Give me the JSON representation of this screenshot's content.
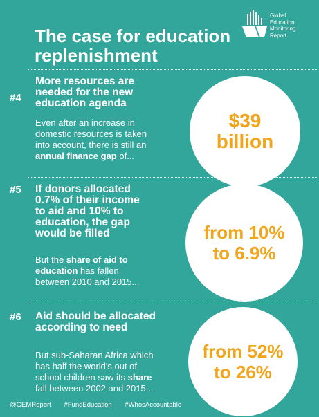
{
  "brand": {
    "logo_lines": [
      "Global",
      "Education",
      "Monitoring",
      "Report"
    ]
  },
  "title_lines": [
    "The case for education",
    "replenishment"
  ],
  "sections": [
    {
      "number": "#4",
      "heading_lines": [
        "More resources are",
        "needed for the new",
        "education agenda"
      ],
      "body_lines": [
        [
          {
            "t": "Even after an increase in",
            "b": false
          }
        ],
        [
          {
            "t": "domestic resources is taken",
            "b": false
          }
        ],
        [
          {
            "t": "into account, there is still an",
            "b": false
          }
        ],
        [
          {
            "t": "annual finance gap",
            "b": true
          },
          {
            "t": " of...",
            "b": false
          }
        ]
      ],
      "highlight_lines": [
        "$39",
        "billion"
      ]
    },
    {
      "number": "#5",
      "heading_lines": [
        "If donors allocated",
        "0.7% of their income",
        "to aid and 10% to",
        "education, the gap",
        "would be filled"
      ],
      "body_lines": [
        [
          {
            "t": "But the ",
            "b": false
          },
          {
            "t": "share of aid to",
            "b": true
          }
        ],
        [
          {
            "t": "education",
            "b": true
          },
          {
            "t": " has fallen",
            "b": false
          }
        ],
        [
          {
            "t": "between 2010 and 2015...",
            "b": false
          }
        ]
      ],
      "highlight_lines": [
        "from 10%",
        "to 6.9%"
      ]
    },
    {
      "number": "#6",
      "heading_lines": [
        "Aid should be allocated",
        "according to need"
      ],
      "body_lines": [
        [
          {
            "t": "But sub-Saharan Africa which",
            "b": false
          }
        ],
        [
          {
            "t": "has half the world's out of",
            "b": false
          }
        ],
        [
          {
            "t": "school children saw its ",
            "b": false
          },
          {
            "t": "share",
            "b": true
          }
        ],
        [
          {
            "t": "fall between 2002 and 2015...",
            "b": false
          }
        ]
      ],
      "highlight_lines": [
        "from 52%",
        "to 26%"
      ]
    }
  ],
  "footer": {
    "handle": "@GEMReport",
    "hashtag_1": "#FundEducation",
    "hashtag_2": "#WhosAccountable"
  },
  "colors": {
    "background": "#33a69c",
    "highlight": "#f2a51a",
    "circle": "#ffffff",
    "text": "#ffffff"
  }
}
